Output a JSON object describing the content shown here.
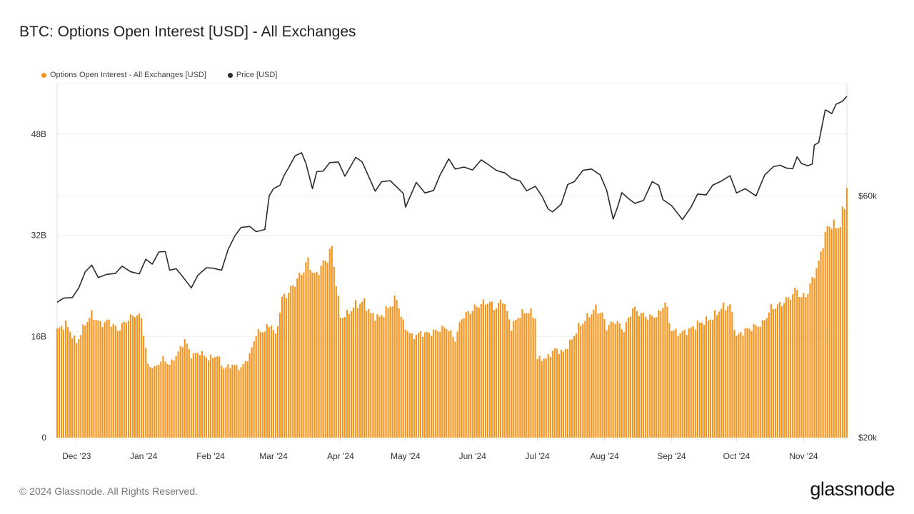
{
  "title": "BTC: Options Open Interest [USD] - All Exchanges",
  "footer": {
    "copyright": "© 2024 Glassnode. All Rights Reserved.",
    "brand": "glassnode"
  },
  "colors": {
    "oi": "#f7931a",
    "price": "#2b2b2b",
    "grid": "#ececec",
    "axis": "#dddddd",
    "label": "#333333"
  },
  "chart_data": {
    "type": "bar",
    "title": "BTC: Options Open Interest [USD] - All Exchanges",
    "legend_position": "top-left",
    "grid": true,
    "x_range": [
      "2023-11-22",
      "2024-11-21"
    ],
    "x_ticks": [
      {
        "date": "2023-12-01",
        "label": "Dec '23"
      },
      {
        "date": "2024-01-01",
        "label": "Jan '24"
      },
      {
        "date": "2024-02-01",
        "label": "Feb '24"
      },
      {
        "date": "2024-03-01",
        "label": "Mar '24"
      },
      {
        "date": "2024-04-01",
        "label": "Apr '24"
      },
      {
        "date": "2024-05-01",
        "label": "May '24"
      },
      {
        "date": "2024-06-01",
        "label": "Jun '24"
      },
      {
        "date": "2024-07-01",
        "label": "Jul '24"
      },
      {
        "date": "2024-08-01",
        "label": "Aug '24"
      },
      {
        "date": "2024-09-01",
        "label": "Sep '24"
      },
      {
        "date": "2024-10-01",
        "label": "Oct '24"
      },
      {
        "date": "2024-11-01",
        "label": "Nov '24"
      }
    ],
    "y_left": {
      "range": [
        0,
        56
      ],
      "unit": "B USD",
      "ticks": [
        {
          "value": 0,
          "label": "0"
        },
        {
          "value": 16,
          "label": "16B"
        },
        {
          "value": 32,
          "label": "32B"
        },
        {
          "value": 48,
          "label": "48B"
        }
      ]
    },
    "y_right": {
      "scale": "log",
      "range": [
        20000,
        100000
      ],
      "ticks": [
        {
          "value": 20000,
          "label": "$20k"
        },
        {
          "value": 60000,
          "label": "$60k"
        }
      ]
    },
    "series": [
      {
        "name": "Options Open Interest - All Exchanges [USD]",
        "type": "bar",
        "axis": "left",
        "unit": "B USD",
        "points": [
          [
            "2023-11-22",
            17
          ],
          [
            "2023-11-26",
            18
          ],
          [
            "2023-12-01",
            15
          ],
          [
            "2023-12-05",
            18
          ],
          [
            "2023-12-08",
            19.5
          ],
          [
            "2023-12-12",
            18
          ],
          [
            "2023-12-16",
            18.5
          ],
          [
            "2023-12-20",
            17
          ],
          [
            "2023-12-24",
            18.5
          ],
          [
            "2023-12-28",
            19.5
          ],
          [
            "2023-12-31",
            19
          ],
          [
            "2024-01-03",
            11.5
          ],
          [
            "2024-01-06",
            11
          ],
          [
            "2024-01-10",
            12.5
          ],
          [
            "2024-01-13",
            11.5
          ],
          [
            "2024-01-17",
            13.5
          ],
          [
            "2024-01-20",
            15.5
          ],
          [
            "2024-01-23",
            13
          ],
          [
            "2024-01-27",
            13.5
          ],
          [
            "2024-01-31",
            12.5
          ],
          [
            "2024-02-04",
            13
          ],
          [
            "2024-02-07",
            11
          ],
          [
            "2024-02-11",
            11.5
          ],
          [
            "2024-02-15",
            11
          ],
          [
            "2024-02-19",
            13
          ],
          [
            "2024-02-22",
            16.5
          ],
          [
            "2024-02-26",
            17
          ],
          [
            "2024-02-29",
            18
          ],
          [
            "2024-03-02",
            16
          ],
          [
            "2024-03-05",
            22
          ],
          [
            "2024-03-08",
            23
          ],
          [
            "2024-03-11",
            24.5
          ],
          [
            "2024-03-14",
            26
          ],
          [
            "2024-03-17",
            28
          ],
          [
            "2024-03-20",
            25.5
          ],
          [
            "2024-03-23",
            27
          ],
          [
            "2024-03-26",
            28.5
          ],
          [
            "2024-03-28",
            30
          ],
          [
            "2024-04-01",
            19
          ],
          [
            "2024-04-04",
            19.5
          ],
          [
            "2024-04-08",
            21
          ],
          [
            "2024-04-12",
            21.5
          ],
          [
            "2024-04-15",
            19.5
          ],
          [
            "2024-04-19",
            19
          ],
          [
            "2024-04-23",
            20.5
          ],
          [
            "2024-04-27",
            22
          ],
          [
            "2024-04-30",
            18
          ],
          [
            "2024-05-04",
            16
          ],
          [
            "2024-05-08",
            16.5
          ],
          [
            "2024-05-12",
            16.5
          ],
          [
            "2024-05-16",
            17
          ],
          [
            "2024-05-20",
            17.5
          ],
          [
            "2024-05-24",
            15.5
          ],
          [
            "2024-05-27",
            19
          ],
          [
            "2024-05-31",
            20
          ],
          [
            "2024-06-04",
            21
          ],
          [
            "2024-06-08",
            21.5
          ],
          [
            "2024-06-12",
            20.5
          ],
          [
            "2024-06-15",
            22
          ],
          [
            "2024-06-19",
            17.5
          ],
          [
            "2024-06-23",
            19.5
          ],
          [
            "2024-06-27",
            20
          ],
          [
            "2024-06-30",
            19
          ],
          [
            "2024-07-01",
            12.5
          ],
          [
            "2024-07-05",
            12.5
          ],
          [
            "2024-07-09",
            14
          ],
          [
            "2024-07-13",
            13.5
          ],
          [
            "2024-07-17",
            15.5
          ],
          [
            "2024-07-20",
            17.5
          ],
          [
            "2024-07-24",
            19
          ],
          [
            "2024-07-28",
            20.5
          ],
          [
            "2024-07-31",
            19.5
          ],
          [
            "2024-08-02",
            17.5
          ],
          [
            "2024-08-06",
            18.5
          ],
          [
            "2024-08-10",
            17
          ],
          [
            "2024-08-14",
            20.5
          ],
          [
            "2024-08-18",
            19.5
          ],
          [
            "2024-08-22",
            19
          ],
          [
            "2024-08-26",
            19.5
          ],
          [
            "2024-08-29",
            21.5
          ],
          [
            "2024-09-01",
            17
          ],
          [
            "2024-09-05",
            16.5
          ],
          [
            "2024-09-09",
            17
          ],
          [
            "2024-09-13",
            18
          ],
          [
            "2024-09-17",
            18.5
          ],
          [
            "2024-09-20",
            19
          ],
          [
            "2024-09-24",
            20.5
          ],
          [
            "2024-09-28",
            21
          ],
          [
            "2024-10-01",
            16
          ],
          [
            "2024-10-05",
            17
          ],
          [
            "2024-10-09",
            17.5
          ],
          [
            "2024-10-13",
            18
          ],
          [
            "2024-10-17",
            20.5
          ],
          [
            "2024-10-21",
            21
          ],
          [
            "2024-10-25",
            22
          ],
          [
            "2024-10-29",
            23.5
          ],
          [
            "2024-10-31",
            22
          ],
          [
            "2024-11-03",
            23
          ],
          [
            "2024-11-06",
            26
          ],
          [
            "2024-11-08",
            27.5
          ],
          [
            "2024-11-10",
            31
          ],
          [
            "2024-11-12",
            33
          ],
          [
            "2024-11-14",
            34
          ],
          [
            "2024-11-16",
            33
          ],
          [
            "2024-11-18",
            34
          ],
          [
            "2024-11-20",
            36.5
          ],
          [
            "2024-11-21",
            40
          ]
        ]
      },
      {
        "name": "Price [USD]",
        "type": "line",
        "axis": "right",
        "unit": "USD",
        "points": [
          [
            "2023-11-22",
            37000
          ],
          [
            "2023-11-25",
            37700
          ],
          [
            "2023-11-29",
            37800
          ],
          [
            "2023-12-02",
            39500
          ],
          [
            "2023-12-05",
            42500
          ],
          [
            "2023-12-08",
            43800
          ],
          [
            "2023-12-11",
            41400
          ],
          [
            "2023-12-15",
            42000
          ],
          [
            "2023-12-19",
            42200
          ],
          [
            "2023-12-22",
            43600
          ],
          [
            "2023-12-26",
            42500
          ],
          [
            "2023-12-30",
            42100
          ],
          [
            "2024-01-02",
            45000
          ],
          [
            "2024-01-05",
            44000
          ],
          [
            "2024-01-08",
            46500
          ],
          [
            "2024-01-11",
            46600
          ],
          [
            "2024-01-13",
            42800
          ],
          [
            "2024-01-16",
            43100
          ],
          [
            "2024-01-19",
            41600
          ],
          [
            "2024-01-23",
            39500
          ],
          [
            "2024-01-26",
            41800
          ],
          [
            "2024-01-30",
            43300
          ],
          [
            "2024-02-02",
            43200
          ],
          [
            "2024-02-06",
            42800
          ],
          [
            "2024-02-09",
            47000
          ],
          [
            "2024-02-12",
            49900
          ],
          [
            "2024-02-15",
            52000
          ],
          [
            "2024-02-19",
            52200
          ],
          [
            "2024-02-22",
            51000
          ],
          [
            "2024-02-26",
            51500
          ],
          [
            "2024-02-28",
            60000
          ],
          [
            "2024-03-01",
            62000
          ],
          [
            "2024-03-04",
            63000
          ],
          [
            "2024-03-06",
            66000
          ],
          [
            "2024-03-08",
            68200
          ],
          [
            "2024-03-11",
            72000
          ],
          [
            "2024-03-14",
            73000
          ],
          [
            "2024-03-16",
            69500
          ],
          [
            "2024-03-19",
            62000
          ],
          [
            "2024-03-21",
            67000
          ],
          [
            "2024-03-24",
            67200
          ],
          [
            "2024-03-27",
            69800
          ],
          [
            "2024-03-31",
            70000
          ],
          [
            "2024-04-03",
            65600
          ],
          [
            "2024-04-08",
            71500
          ],
          [
            "2024-04-11",
            70000
          ],
          [
            "2024-04-13",
            67000
          ],
          [
            "2024-04-17",
            61300
          ],
          [
            "2024-04-20",
            64000
          ],
          [
            "2024-04-24",
            64300
          ],
          [
            "2024-04-30",
            60700
          ],
          [
            "2024-05-01",
            57000
          ],
          [
            "2024-05-06",
            63800
          ],
          [
            "2024-05-10",
            60800
          ],
          [
            "2024-05-14",
            61500
          ],
          [
            "2024-05-17",
            66000
          ],
          [
            "2024-05-21",
            71000
          ],
          [
            "2024-05-24",
            67800
          ],
          [
            "2024-05-28",
            68400
          ],
          [
            "2024-06-01",
            67500
          ],
          [
            "2024-06-05",
            70700
          ],
          [
            "2024-06-08",
            69300
          ],
          [
            "2024-06-12",
            67400
          ],
          [
            "2024-06-16",
            66600
          ],
          [
            "2024-06-19",
            65000
          ],
          [
            "2024-06-23",
            64200
          ],
          [
            "2024-06-26",
            61400
          ],
          [
            "2024-06-30",
            62700
          ],
          [
            "2024-07-03",
            60000
          ],
          [
            "2024-07-06",
            56500
          ],
          [
            "2024-07-08",
            55800
          ],
          [
            "2024-07-12",
            57800
          ],
          [
            "2024-07-15",
            63200
          ],
          [
            "2024-07-18",
            64000
          ],
          [
            "2024-07-22",
            67400
          ],
          [
            "2024-07-26",
            67800
          ],
          [
            "2024-07-30",
            66000
          ],
          [
            "2024-08-02",
            61500
          ],
          [
            "2024-08-05",
            54000
          ],
          [
            "2024-08-07",
            57000
          ],
          [
            "2024-08-09",
            60900
          ],
          [
            "2024-08-12",
            59300
          ],
          [
            "2024-08-15",
            58000
          ],
          [
            "2024-08-19",
            58800
          ],
          [
            "2024-08-23",
            64000
          ],
          [
            "2024-08-26",
            63000
          ],
          [
            "2024-08-28",
            59000
          ],
          [
            "2024-09-01",
            57400
          ],
          [
            "2024-09-06",
            53900
          ],
          [
            "2024-09-10",
            57000
          ],
          [
            "2024-09-13",
            60500
          ],
          [
            "2024-09-17",
            60300
          ],
          [
            "2024-09-20",
            63000
          ],
          [
            "2024-09-24",
            64200
          ],
          [
            "2024-09-28",
            65800
          ],
          [
            "2024-10-01",
            60800
          ],
          [
            "2024-10-05",
            62000
          ],
          [
            "2024-10-10",
            60000
          ],
          [
            "2024-10-14",
            66000
          ],
          [
            "2024-10-18",
            68500
          ],
          [
            "2024-10-21",
            69000
          ],
          [
            "2024-10-24",
            68100
          ],
          [
            "2024-10-27",
            67900
          ],
          [
            "2024-10-29",
            71700
          ],
          [
            "2024-10-31",
            69500
          ],
          [
            "2024-11-03",
            68800
          ],
          [
            "2024-11-05",
            69400
          ],
          [
            "2024-11-06",
            75600
          ],
          [
            "2024-11-08",
            76500
          ],
          [
            "2024-11-11",
            88700
          ],
          [
            "2024-11-12",
            88300
          ],
          [
            "2024-11-14",
            87200
          ],
          [
            "2024-11-16",
            91000
          ],
          [
            "2024-11-19",
            92300
          ],
          [
            "2024-11-21",
            94300
          ]
        ]
      }
    ]
  }
}
